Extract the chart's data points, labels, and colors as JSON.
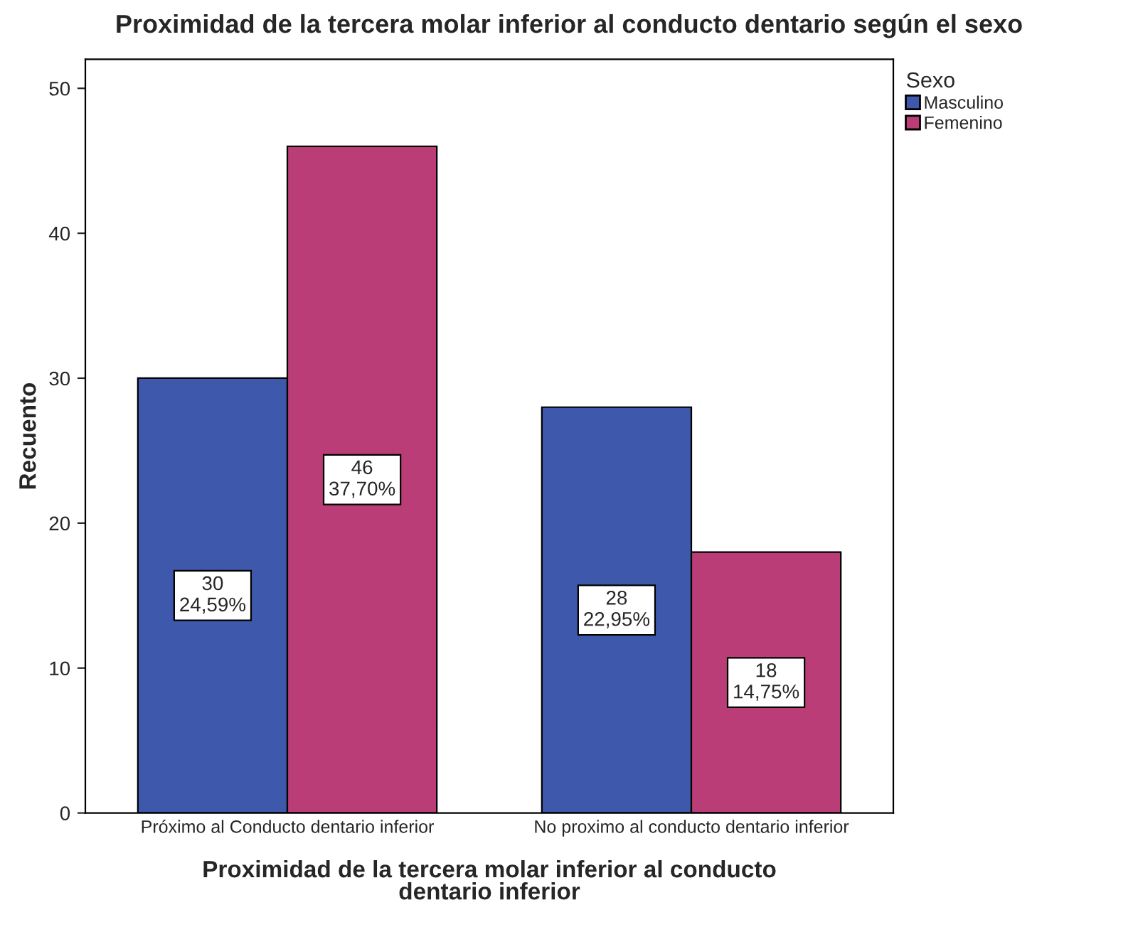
{
  "chart_data": {
    "type": "bar",
    "title": "Proximidad de la tercera molar inferior al conducto dentario según el sexo",
    "xlabel": "Proximidad de la tercera molar inferior al conducto\ndentario inferior",
    "ylabel": "Recuento",
    "legend_title": "Sexo",
    "categories": [
      "Próximo al Conducto dentario inferior",
      "No proximo al conducto dentario inferior"
    ],
    "series": [
      {
        "name": "Masculino",
        "color": "#3e58ac",
        "values": [
          30,
          28
        ],
        "value_labels": [
          "30\n24,59%",
          "28\n22,95%"
        ]
      },
      {
        "name": "Femenino",
        "color": "#ba3d77",
        "values": [
          46,
          18
        ],
        "value_labels": [
          "46\n37,70%",
          "18\n14,75%"
        ]
      }
    ],
    "ylim": [
      0,
      52
    ],
    "yticks": [
      0,
      10,
      20,
      30,
      40,
      50
    ],
    "grid": false,
    "legend": "top right"
  }
}
